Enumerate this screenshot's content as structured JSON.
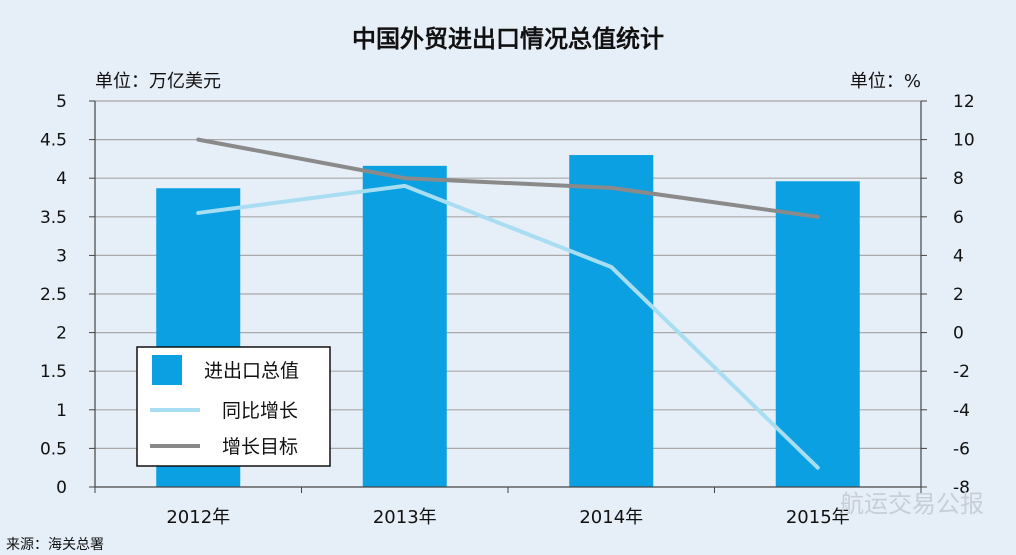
{
  "chart_data": {
    "type": "bar",
    "title": "中国外贸进出口情况总值统计",
    "left_unit": "单位：万亿美元",
    "right_unit": "单位：%",
    "categories": [
      "2012年",
      "2013年",
      "2014年",
      "2015年"
    ],
    "y_left": {
      "ylim": [
        0,
        5
      ],
      "ticks": [
        "0",
        "0.5",
        "1",
        "1.5",
        "2",
        "2.5",
        "3",
        "3.5",
        "4",
        "4.5",
        "5"
      ]
    },
    "y_right": {
      "ylim": [
        -8,
        12
      ],
      "ticks": [
        "-8",
        "-6",
        "-4",
        "-2",
        "0",
        "2",
        "4",
        "6",
        "8",
        "10",
        "12"
      ]
    },
    "series": [
      {
        "name": "进出口总值",
        "type": "bar",
        "axis": "left",
        "color": "#0aa0e2",
        "values": [
          3.87,
          4.16,
          4.3,
          3.96
        ]
      },
      {
        "name": "同比增长",
        "type": "line",
        "axis": "right",
        "color": "#a8ddf2",
        "values": [
          6.2,
          7.6,
          3.4,
          -7.0
        ]
      },
      {
        "name": "增长目标",
        "type": "line",
        "axis": "right",
        "color": "#8a8a8a",
        "values": [
          10,
          8,
          7.5,
          6
        ]
      }
    ],
    "grid": true,
    "legend": "bottom-left"
  },
  "source": "来源：海关总署",
  "watermark": "航运交易公报"
}
